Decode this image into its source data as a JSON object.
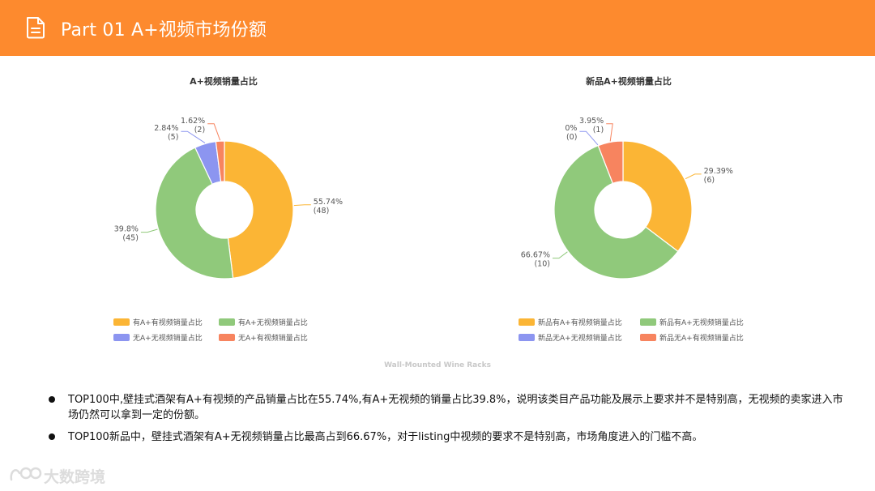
{
  "header": {
    "title": "Part 01  A+视频市场份额",
    "icon": "document-icon",
    "background": "#fd8a2e"
  },
  "chart_data": [
    {
      "type": "pie",
      "title": "A+视频销量占比",
      "donut": true,
      "legend_position": "bottom",
      "slices": [
        {
          "label": "有A+有视频销量占比",
          "value": 48,
          "percent": "55.74%",
          "count": "(48)",
          "color": "#fbb535"
        },
        {
          "label": "有A+无视频销量占比",
          "value": 45,
          "percent": "39.8%",
          "count": "(45)",
          "color": "#90c97b"
        },
        {
          "label": "无A+无视频销量占比",
          "value": 5,
          "percent": "2.84%",
          "count": "(5)",
          "color": "#8c95f0"
        },
        {
          "label": "无A+有视频销量占比",
          "value": 2,
          "percent": "1.62%",
          "count": "(2)",
          "color": "#f7845f"
        }
      ]
    },
    {
      "type": "pie",
      "title": "新品A+视频销量占比",
      "donut": true,
      "legend_position": "bottom",
      "slices": [
        {
          "label": "新品有A+有视频销量占比",
          "value": 6,
          "percent": "29.39%",
          "count": "(6)",
          "color": "#fbb535"
        },
        {
          "label": "新品有A+无视频销量占比",
          "value": 10,
          "percent": "66.67%",
          "count": "(10)",
          "color": "#90c97b"
        },
        {
          "label": "新品无A+无视频销量占比",
          "value": 0,
          "percent": "0%",
          "count": "(0)",
          "color": "#8c95f0"
        },
        {
          "label": "新品无A+有视频销量占比",
          "value": 1,
          "percent": "3.95%",
          "count": "(1)",
          "color": "#f7845f"
        }
      ]
    }
  ],
  "watermark": "Wall-Mounted Wine Racks",
  "bullets": [
    "TOP100中,壁挂式酒架有A+有视频的产品销量占比在55.74%,有A+无视频的销量占比39.8%，说明该类目产品功能及展示上要求并不是特别高，无视频的卖家进入市场仍然可以拿到一定的份额。",
    "TOP100新品中，壁挂式酒架有A+无视频销量占比最高占到66.67%，对于listing中视频的要求不是特别高，市场角度进入的门槛不高。"
  ],
  "logo": {
    "text": "大数跨境",
    "icon": "logo-icon"
  }
}
